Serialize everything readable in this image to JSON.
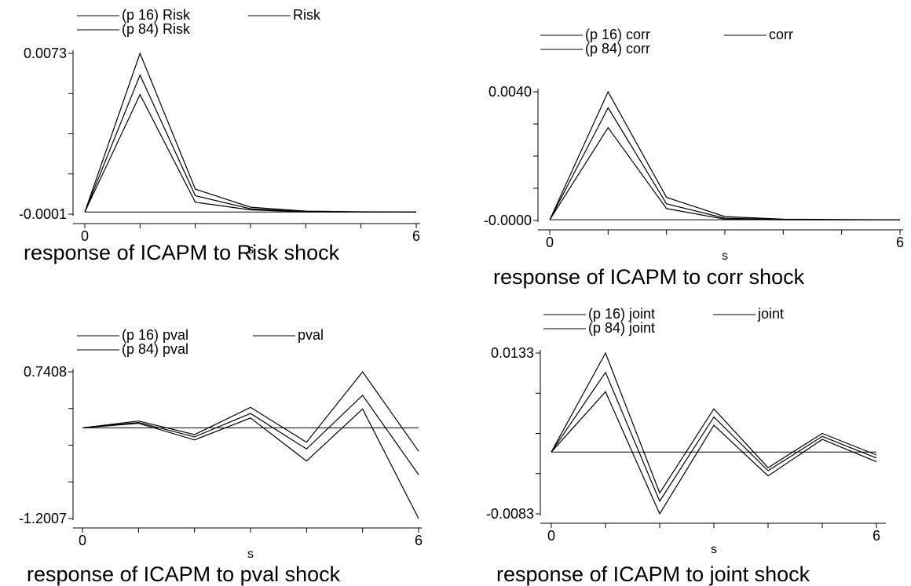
{
  "chart_data": [
    {
      "type": "line",
      "title": "response of ICAPM to Risk shock",
      "xlabel": "s",
      "ylabel": "",
      "x": [
        0,
        1,
        2,
        3,
        4,
        5,
        6
      ],
      "xticks": [
        "0",
        "6"
      ],
      "yticks": [
        "0.0073",
        "-0.0001"
      ],
      "ylim": [
        -0.0001,
        0.0073
      ],
      "legend": [
        "(p 16) Risk",
        "Risk",
        "(p 84) Risk"
      ],
      "series": [
        {
          "name": "(p 16) Risk",
          "values": [
            0,
            0.0054,
            0.00045,
            0.0001,
            0.0,
            0.0,
            0.0
          ]
        },
        {
          "name": "Risk",
          "values": [
            0,
            0.0063,
            0.00075,
            0.00015,
            2e-05,
            0.0,
            0.0
          ]
        },
        {
          "name": "(p 84) Risk",
          "values": [
            0,
            0.0073,
            0.00105,
            0.00022,
            4e-05,
            1e-05,
            0.0
          ]
        }
      ],
      "zero_line": true
    },
    {
      "type": "line",
      "title": "response of ICAPM to corr shock",
      "xlabel": "s",
      "ylabel": "",
      "x": [
        0,
        1,
        2,
        3,
        4,
        5,
        6
      ],
      "xticks": [
        "0",
        "6"
      ],
      "yticks": [
        "0.0040",
        "-0.0000"
      ],
      "ylim": [
        -2e-05,
        0.004
      ],
      "legend": [
        "(p 16) corr",
        "corr",
        "(p 84) corr"
      ],
      "series": [
        {
          "name": "(p 16) corr",
          "values": [
            0,
            0.00288,
            0.00035,
            2e-05,
            0.0,
            0.0,
            0.0
          ]
        },
        {
          "name": "corr",
          "values": [
            0,
            0.0035,
            0.0005,
            5e-05,
            1e-05,
            0.0,
            0.0
          ]
        },
        {
          "name": "(p 84) corr",
          "values": [
            0,
            0.004,
            0.0007,
            0.0001,
            2e-05,
            1e-05,
            0.0
          ]
        }
      ],
      "zero_line": true
    },
    {
      "type": "line",
      "title": "response of ICAPM to pval shock",
      "xlabel": "s",
      "ylabel": "",
      "x": [
        0,
        1,
        2,
        3,
        4,
        5,
        6
      ],
      "xticks": [
        "0",
        "6"
      ],
      "yticks": [
        "0.7408",
        "-1.2007"
      ],
      "ylim": [
        -1.2007,
        0.7408
      ],
      "legend": [
        "(p 16) pval",
        "pval",
        "(p 84) pval"
      ],
      "series": [
        {
          "name": "(p 16) pval",
          "values": [
            0,
            0.06,
            -0.16,
            0.13,
            -0.44,
            0.25,
            -1.2007
          ]
        },
        {
          "name": "pval",
          "values": [
            0,
            0.07,
            -0.12,
            0.19,
            -0.28,
            0.43,
            -0.62
          ]
        },
        {
          "name": "(p 84) pval",
          "values": [
            0,
            0.09,
            -0.09,
            0.27,
            -0.19,
            0.7408,
            -0.31
          ]
        }
      ],
      "zero_line": true
    },
    {
      "type": "line",
      "title": "response of ICAPM to joint shock",
      "xlabel": "s",
      "ylabel": "",
      "x": [
        0,
        1,
        2,
        3,
        4,
        5,
        6
      ],
      "xticks": [
        "0",
        "6"
      ],
      "yticks": [
        "0.0133",
        "-0.0083"
      ],
      "ylim": [
        -0.0083,
        0.0133
      ],
      "legend": [
        "(p 16) joint",
        "joint",
        "(p 84) joint"
      ],
      "series": [
        {
          "name": "(p 16) joint",
          "values": [
            0,
            0.0081,
            -0.0083,
            0.0036,
            -0.0032,
            0.0017,
            -0.0013
          ]
        },
        {
          "name": "joint",
          "values": [
            0,
            0.0107,
            -0.0066,
            0.0047,
            -0.0025,
            0.0021,
            -0.0008
          ]
        },
        {
          "name": "(p 84) joint",
          "values": [
            0,
            0.0133,
            -0.0055,
            0.0058,
            -0.0021,
            0.0025,
            -0.0004
          ]
        }
      ],
      "zero_line": true
    }
  ]
}
